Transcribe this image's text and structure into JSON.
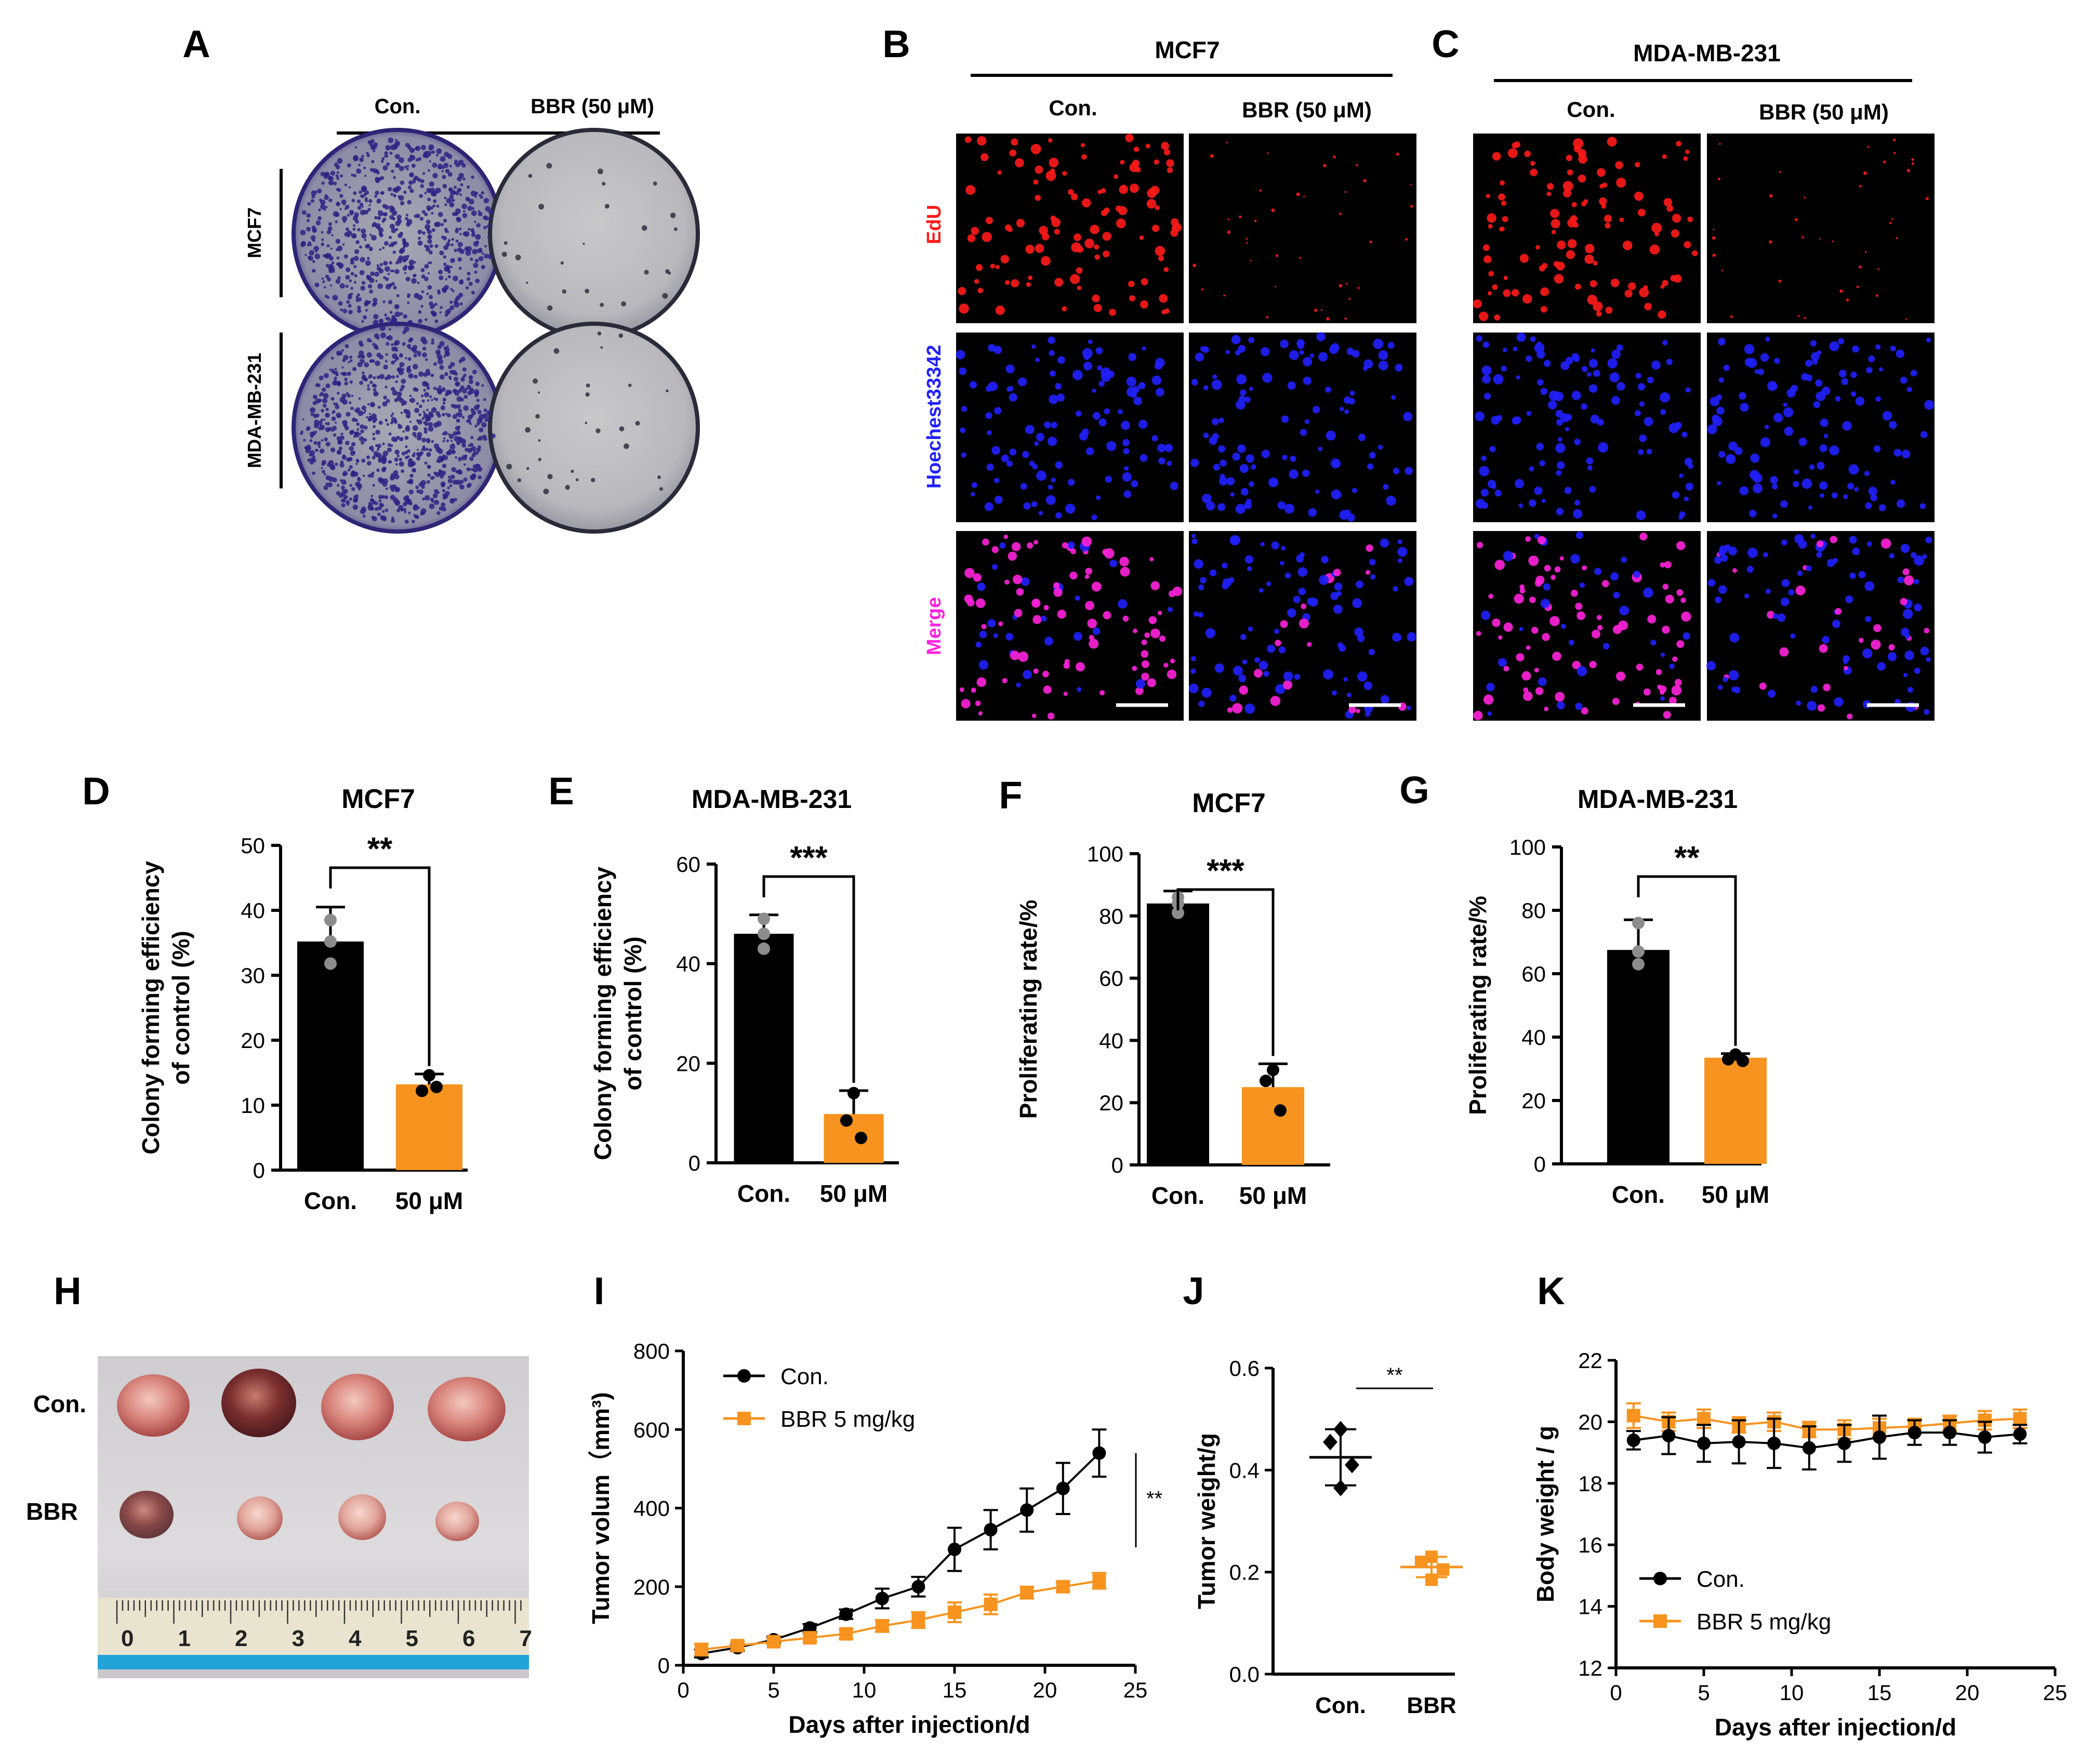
{
  "colors": {
    "con": "#000000",
    "bbr": "#f7931e",
    "edu": "#ff1a1a",
    "hoechst": "#2020ff",
    "merge": "#ff22dd"
  },
  "panel_labels": {
    "A": "A",
    "B": "B",
    "C": "C",
    "D": "D",
    "E": "E",
    "F": "F",
    "G": "G",
    "H": "H",
    "I": "I",
    "J": "J",
    "K": "K"
  },
  "panel_a": {
    "col_con": "Con.",
    "col_bbr": "BBR (50 μM)",
    "row_mcf7": "MCF7",
    "row_mda": "MDA-MB-231"
  },
  "panel_b": {
    "title": "MCF7",
    "col_con": "Con.",
    "col_bbr": "BBR (50 μM)"
  },
  "panel_c": {
    "title": "MDA-MB-231",
    "col_con": "Con.",
    "col_bbr": "BBR (50 μM)"
  },
  "stain_labels": {
    "edu": "EdU",
    "hoechst": "Hoechest33342",
    "merge": "Merge"
  },
  "panel_h": {
    "row_con": "Con.",
    "row_bbr": "BBR",
    "ruler_ticks": [
      "0",
      "1",
      "2",
      "3",
      "4",
      "5",
      "6",
      "7"
    ]
  },
  "chart_data": [
    {
      "panel": "D",
      "type": "bar",
      "title": "MCF7",
      "ylabel": "Colony forming efficiency\nof control (%)",
      "categories": [
        "Con.",
        "50 μM"
      ],
      "values": [
        35.2,
        13.2
      ],
      "errors": [
        5.3,
        1.6
      ],
      "points": [
        [
          38.5,
          35.2,
          31.8
        ],
        [
          14.6,
          12.2,
          12.8
        ]
      ],
      "ylim": [
        0,
        50
      ],
      "yticks": [
        0,
        10,
        20,
        30,
        40,
        50
      ],
      "significance": "**"
    },
    {
      "panel": "E",
      "type": "bar",
      "title": "MDA-MB-231",
      "ylabel": "Colony forming efficiency\nof control (%)",
      "categories": [
        "Con.",
        "50 μM"
      ],
      "values": [
        46.0,
        9.8
      ],
      "errors": [
        3.8,
        4.7
      ],
      "points": [
        [
          49.0,
          46.0,
          43.0
        ],
        [
          14.0,
          8.5,
          5.0
        ]
      ],
      "ylim": [
        0,
        60
      ],
      "yticks": [
        0,
        20,
        40,
        60
      ],
      "significance": "***"
    },
    {
      "panel": "F",
      "type": "bar",
      "title": "MCF7",
      "ylabel": "Proliferating rate/%",
      "categories": [
        "Con.",
        "50 μM"
      ],
      "values": [
        84.0,
        25.0
      ],
      "errors": [
        4.0,
        7.5
      ],
      "points": [
        [
          86.0,
          84.0,
          81.0
        ],
        [
          30.5,
          27.0,
          17.5
        ]
      ],
      "ylim": [
        0,
        100
      ],
      "yticks": [
        0,
        20,
        40,
        60,
        80,
        100
      ],
      "significance": "***"
    },
    {
      "panel": "G",
      "type": "bar",
      "title": "MDA-MB-231",
      "ylabel": "Proliferating rate/%",
      "categories": [
        "Con.",
        "50 μM"
      ],
      "values": [
        67.5,
        33.5
      ],
      "errors": [
        9.5,
        1.3
      ],
      "points": [
        [
          76.0,
          67.0,
          63.0
        ],
        [
          34.5,
          33.0,
          32.5
        ]
      ],
      "ylim": [
        0,
        100
      ],
      "yticks": [
        0,
        20,
        40,
        60,
        80,
        100
      ],
      "significance": "**"
    },
    {
      "panel": "I",
      "type": "line",
      "xlabel": "Days after injection/d",
      "ylabel": "Tumor volum（mm³)",
      "xlim": [
        0,
        25
      ],
      "xticks": [
        0,
        5,
        10,
        15,
        20,
        25
      ],
      "ylim": [
        0,
        800
      ],
      "yticks": [
        0,
        200,
        400,
        600,
        800
      ],
      "x": [
        1,
        3,
        5,
        7,
        9,
        11,
        13,
        15,
        17,
        19,
        21,
        23
      ],
      "series": [
        {
          "name": "Con.",
          "values": [
            30,
            45,
            65,
            95,
            130,
            170,
            200,
            295,
            345,
            395,
            450,
            540
          ],
          "errors": [
            10,
            8,
            8,
            10,
            12,
            25,
            25,
            55,
            50,
            55,
            65,
            60
          ]
        },
        {
          "name": "BBR  5 mg/kg",
          "values": [
            40,
            50,
            60,
            70,
            80,
            100,
            115,
            135,
            155,
            185,
            200,
            215
          ],
          "errors": [
            15,
            10,
            8,
            10,
            12,
            15,
            20,
            25,
            25,
            15,
            12,
            20
          ]
        }
      ],
      "significance": "**"
    },
    {
      "panel": "J",
      "type": "scatter",
      "ylabel": "Tumor weight/g",
      "categories": [
        "Con.",
        "BBR"
      ],
      "ylim": [
        0,
        0.6
      ],
      "yticks": [
        0.0,
        0.2,
        0.4,
        0.6
      ],
      "ytick_labels": [
        "0.0",
        "0.2",
        "0.4",
        "0.6"
      ],
      "means": [
        0.425,
        0.21
      ],
      "sd": [
        0.055,
        0.02
      ],
      "points": [
        [
          0.48,
          0.455,
          0.41,
          0.365
        ],
        [
          0.23,
          0.22,
          0.205,
          0.185
        ]
      ],
      "significance": "**"
    },
    {
      "panel": "K",
      "type": "line",
      "xlabel": "Days after injection/d",
      "ylabel": "Body weight / g",
      "xlim": [
        0,
        25
      ],
      "xticks": [
        0,
        5,
        10,
        15,
        20,
        25
      ],
      "ylim": [
        12,
        22
      ],
      "yticks": [
        12,
        14,
        16,
        18,
        20,
        22
      ],
      "x": [
        1,
        3,
        5,
        7,
        9,
        11,
        13,
        15,
        17,
        19,
        21,
        23
      ],
      "series": [
        {
          "name": "Con.",
          "values": [
            19.4,
            19.55,
            19.3,
            19.35,
            19.3,
            19.15,
            19.3,
            19.5,
            19.65,
            19.65,
            19.5,
            19.6
          ],
          "errors": [
            0.3,
            0.6,
            0.6,
            0.7,
            0.8,
            0.7,
            0.6,
            0.7,
            0.4,
            0.4,
            0.5,
            0.3
          ]
        },
        {
          "name": "BBR  5 mg/kg",
          "values": [
            20.2,
            20.0,
            20.1,
            19.9,
            20.0,
            19.75,
            19.75,
            19.8,
            19.85,
            19.95,
            20.05,
            20.1
          ],
          "errors": [
            0.4,
            0.3,
            0.3,
            0.25,
            0.3,
            0.25,
            0.3,
            0.3,
            0.25,
            0.25,
            0.3,
            0.3
          ]
        }
      ]
    }
  ]
}
